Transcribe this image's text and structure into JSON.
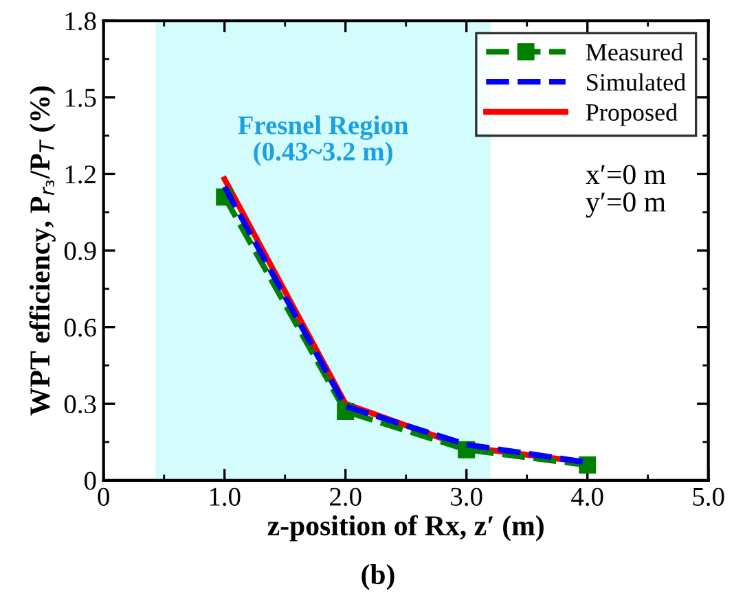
{
  "chart_data": {
    "type": "line",
    "xlabel": "z-position of Rx, z′ (m)",
    "ylabel": "WPT efficiency, P$_{r₃}$/P$_{T}$ (%)",
    "x": [
      1.0,
      2.0,
      3.0,
      4.0
    ],
    "series": [
      {
        "name": "Measured",
        "color": "#008000",
        "values": [
          1.11,
          0.27,
          0.12,
          0.06
        ],
        "marker": "square",
        "line_style": "dashed"
      },
      {
        "name": "Simulated",
        "color": "#0000ff",
        "values": [
          1.15,
          0.29,
          0.14,
          0.07
        ],
        "marker": "none",
        "line_style": "dashed"
      },
      {
        "name": "Proposed",
        "color": "#ff0000",
        "values": [
          1.18,
          0.3,
          0.13,
          0.07
        ],
        "marker": "none",
        "line_style": "solid"
      }
    ],
    "xlim": [
      0,
      5
    ],
    "xticks": [
      0,
      {
        "value": 1,
        "label": "1.0"
      },
      {
        "value": 2,
        "label": "2.0"
      },
      {
        "value": 3,
        "label": "3.0"
      },
      {
        "value": 4,
        "label": "4.0"
      },
      {
        "value": 5,
        "label": "5.0"
      }
    ],
    "ylim": [
      0,
      1.8
    ],
    "yticks": [
      0,
      0.3,
      0.6,
      0.9,
      1.2,
      1.5,
      1.8
    ],
    "bands": [
      {
        "axis": "x",
        "from": 0.43,
        "to": 3.2,
        "label": "Fresnel Region\n(0.43~3.2 m)",
        "color": "#d4fcfc"
      }
    ],
    "annotations": [
      "x′=0 m",
      "y′=0 m",
      "(b)"
    ],
    "legend": "top right",
    "grid": false
  }
}
